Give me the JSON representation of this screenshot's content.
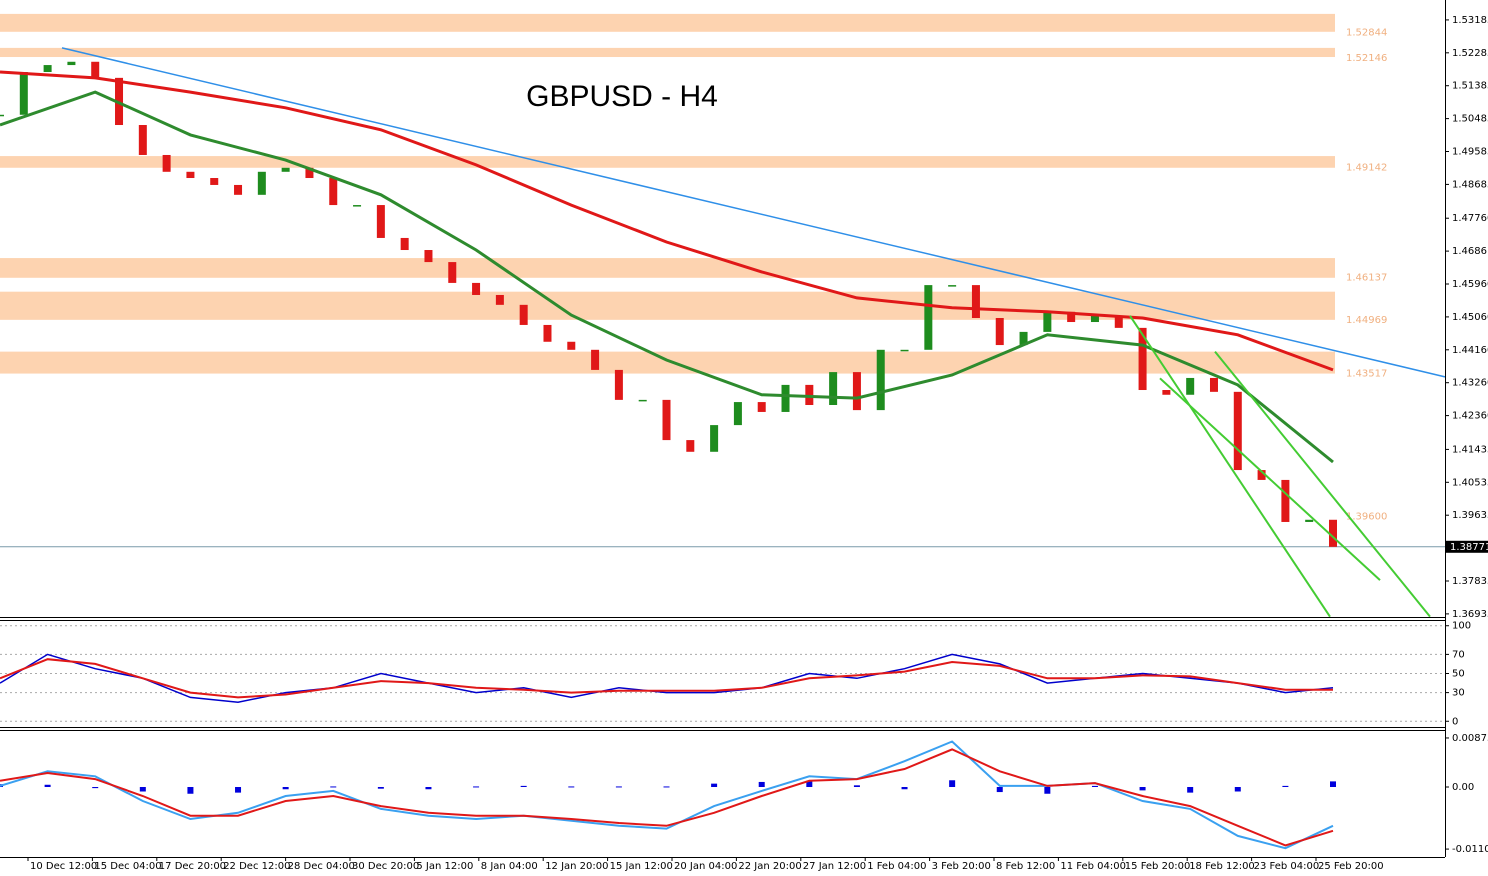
{
  "chart_data": [
    {
      "type": "candlestick",
      "title": "GBPUSD - H4",
      "ylim": [
        1.3685,
        1.5373
      ],
      "yticks": [
        1.53185,
        1.52285,
        1.51385,
        1.50485,
        1.49585,
        1.48685,
        {
          "value": 1.4776,
          "label": "1.47760"
        },
        1.4686,
        {
          "value": 1.4596,
          "label": "1.45960"
        },
        {
          "value": 1.4506,
          "label": "1.45060"
        },
        {
          "value": 1.4416,
          "label": "1.44160"
        },
        {
          "value": 1.4326,
          "label": "1.43260"
        },
        {
          "value": 1.4236,
          "label": "1.42360"
        },
        1.41435,
        1.40535,
        1.39635,
        1.37835,
        1.36935
      ],
      "x_labels": [
        "10 Dec 12:00",
        "15 Dec 04:00",
        "17 Dec 20:00",
        "22 Dec 12:00",
        "28 Dec 04:00",
        "30 Dec 20:00",
        "5 Jan 12:00",
        "8 Jan 04:00",
        "12 Jan 20:00",
        "15 Jan 12:00",
        "20 Jan 04:00",
        "22 Jan 20:00",
        "27 Jan 12:00",
        "1 Feb 04:00",
        "3 Feb 20:00",
        "8 Feb 12:00",
        "11 Feb 04:00",
        "15 Feb 20:00",
        "18 Feb 12:00",
        "23 Feb 04:00",
        "25 Feb 20:00"
      ],
      "closes": [
        1.5059,
        1.5176,
        1.5195,
        1.5204,
        1.516,
        1.5031,
        1.4949,
        1.4903,
        1.4886,
        1.4867,
        1.484,
        1.4903,
        1.4914,
        1.4886,
        1.4812,
        1.4812,
        1.4722,
        1.4689,
        1.4656,
        1.4599,
        1.4566,
        1.4539,
        1.4484,
        1.4438,
        1.4416,
        1.4361,
        1.4279,
        1.4279,
        1.4169,
        1.4137,
        1.421,
        1.4273,
        1.4246,
        1.432,
        1.4265,
        1.4355,
        1.4251,
        1.4416,
        1.4416,
        1.4593,
        1.4593,
        1.4503,
        1.4429,
        1.4465,
        1.452,
        1.4492,
        1.4509,
        1.4476,
        1.4306,
        1.4293,
        1.4339,
        1.4301,
        1.4087,
        1.406,
        1.3945,
        1.3951,
        1.3877
      ],
      "up_color": "#1e8c1e",
      "down_color": "#e01818",
      "last_price": 1.38771,
      "overlays": [
        {
          "color": "#2e8b2e",
          "values": [
            1.5031,
            1.5121,
            1.5004,
            1.4935,
            1.484,
            1.4689,
            1.4511,
            1.4388,
            1.4293,
            1.4284,
            1.4347,
            1.4457,
            1.4429,
            1.432,
            1.4109
          ]
        },
        {
          "color": "#e01818",
          "values": [
            1.5176,
            1.516,
            1.5121,
            1.5078,
            1.5018,
            1.4922,
            1.4812,
            1.4711,
            1.4629,
            1.4558,
            1.4531,
            1.452,
            1.4503,
            1.4457,
            1.4361
          ]
        }
      ],
      "trendlines": [
        {
          "color": "#2f8fe8",
          "values": [
            1.5242,
            1.4342
          ]
        },
        {
          "color": "#44cc33",
          "values": [
            1.4509,
            1.3686
          ]
        },
        {
          "color": "#44cc33",
          "values": [
            1.4411,
            1.3686
          ]
        },
        {
          "color": "#44cc33",
          "values": [
            1.4338,
            1.3786
          ]
        }
      ],
      "zones": [
        {
          "label": "1.52844",
          "value": 1.52844,
          "range": [
            1.5286,
            1.5335
          ]
        },
        {
          "label": "1.52146",
          "value": 1.52146,
          "range": [
            1.5217,
            1.5242
          ]
        },
        {
          "label": "1.49142",
          "value": 1.49142,
          "range": [
            1.4914,
            1.4946
          ]
        },
        {
          "label": "1.46137",
          "value": 1.46137,
          "range": [
            1.4613,
            1.4667
          ]
        },
        {
          "label": "1.44969",
          "value": 1.44969,
          "range": [
            1.4498,
            1.4575
          ]
        },
        {
          "label": "1.43517",
          "value": 1.43517,
          "range": [
            1.4351,
            1.4411
          ]
        }
      ],
      "levels": [
        {
          "label": "1.39600",
          "value": 1.396
        }
      ],
      "zone_color": "#fdd3b0"
    },
    {
      "type": "line",
      "ylim": [
        -6,
        106
      ],
      "yticks": [
        100,
        70,
        50,
        30,
        0
      ],
      "grid": true,
      "series": [
        {
          "color": "#0000cc",
          "values": [
            40,
            70,
            55,
            45,
            25,
            20,
            30,
            35,
            50,
            40,
            30,
            35,
            25,
            35,
            30,
            30,
            35,
            50,
            45,
            55,
            70,
            60,
            40,
            45,
            50,
            45,
            40,
            30,
            35
          ]
        },
        {
          "color": "#e01818",
          "values": [
            45,
            65,
            60,
            45,
            30,
            25,
            28,
            35,
            42,
            40,
            35,
            33,
            30,
            32,
            32,
            32,
            35,
            45,
            48,
            52,
            62,
            58,
            45,
            45,
            48,
            47,
            40,
            33,
            33
          ]
        }
      ]
    },
    {
      "type": "macd",
      "ylim": [
        -0.01246,
        0.00997
      ],
      "yticks": [
        0.00873,
        {
          "value": 0,
          "label": "0.00"
        },
        -0.01105
      ],
      "histogram": {
        "color": "#0000dd",
        "values": [
          0.0005,
          0.0004,
          -0.0002,
          -0.0008,
          -0.0012,
          -0.001,
          -0.0004,
          0.0001,
          -0.0003,
          -0.0004,
          0.0001,
          0.0002,
          0.0001,
          0.0001,
          0.0001,
          0.0006,
          0.0009,
          0.0011,
          0.0003,
          -0.0004,
          0.0012,
          -0.0009,
          -0.0012,
          0.0002,
          -0.0006,
          -0.001,
          -0.0008,
          0.0002,
          0.001
        ]
      },
      "series": [
        {
          "color": "#3aa0f0",
          "values": [
            0.0002,
            0.0028,
            0.0019,
            -0.0025,
            -0.0057,
            -0.0046,
            -0.0016,
            -0.0007,
            -0.0039,
            -0.0051,
            -0.0057,
            -0.0051,
            -0.006,
            -0.0069,
            -0.0074,
            -0.0034,
            -0.0007,
            0.0019,
            0.0014,
            0.0046,
            0.0081,
            0.0002,
            0.0002,
            0.0007,
            -0.0025,
            -0.0039,
            -0.0087,
            -0.0109,
            -0.0069
          ]
        },
        {
          "color": "#e01818",
          "values": [
            0.0011,
            0.0025,
            0.0014,
            -0.0016,
            -0.0051,
            -0.0051,
            -0.0025,
            -0.0016,
            -0.0034,
            -0.0046,
            -0.0051,
            -0.0051,
            -0.0057,
            -0.0064,
            -0.0069,
            -0.0046,
            -0.0016,
            0.0011,
            0.0014,
            0.0032,
            0.0067,
            0.0028,
            0.0002,
            0.0007,
            -0.0016,
            -0.0034,
            -0.0069,
            -0.0104,
            -0.0078
          ]
        }
      ]
    }
  ]
}
